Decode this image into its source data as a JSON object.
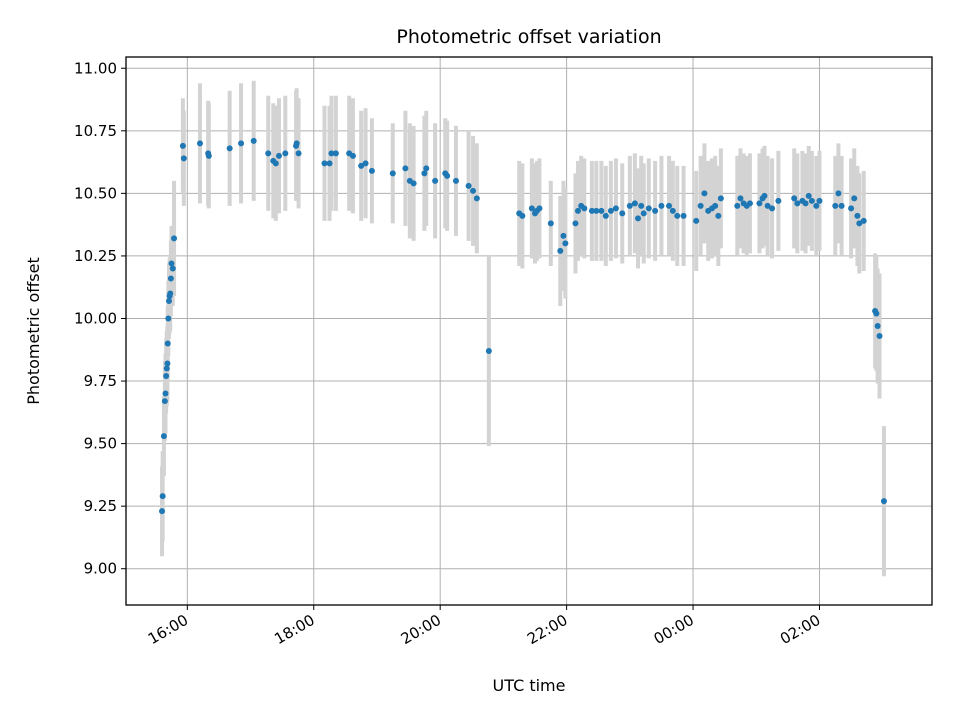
{
  "chart_data": {
    "type": "scatter",
    "title": "Photometric offset variation",
    "xlabel": "UTC time",
    "ylabel": "Photometric offset",
    "x_unit": "hours",
    "xlim": [
      15.03,
      27.78
    ],
    "ylim": [
      8.855,
      11.045
    ],
    "x_ticks": [
      {
        "value": 16,
        "label": "16:00"
      },
      {
        "value": 18,
        "label": "18:00"
      },
      {
        "value": 20,
        "label": "20:00"
      },
      {
        "value": 22,
        "label": "22:00"
      },
      {
        "value": 24,
        "label": "00:00"
      },
      {
        "value": 26,
        "label": "02:00"
      }
    ],
    "y_ticks": [
      {
        "value": 9.0,
        "label": "9.00"
      },
      {
        "value": 9.25,
        "label": "9.25"
      },
      {
        "value": 9.5,
        "label": "9.50"
      },
      {
        "value": 9.75,
        "label": "9.75"
      },
      {
        "value": 10.0,
        "label": "10.00"
      },
      {
        "value": 10.25,
        "label": "10.25"
      },
      {
        "value": 10.5,
        "label": "10.50"
      },
      {
        "value": 10.75,
        "label": "10.75"
      },
      {
        "value": 11.0,
        "label": "11.00"
      }
    ],
    "grid": true,
    "marker_color": "#1f77b4",
    "errorbar_color": "#d3d3d3",
    "points": [
      [
        15.6,
        9.23,
        0.18
      ],
      [
        15.61,
        9.29,
        0.18
      ],
      [
        15.63,
        9.53,
        0.16
      ],
      [
        15.645,
        9.67,
        0.16
      ],
      [
        15.655,
        9.7,
        0.16
      ],
      [
        15.665,
        9.77,
        0.15
      ],
      [
        15.675,
        9.8,
        0.15
      ],
      [
        15.685,
        9.82,
        0.15
      ],
      [
        15.69,
        9.9,
        0.15
      ],
      [
        15.7,
        10.0,
        0.15
      ],
      [
        15.71,
        10.07,
        0.15
      ],
      [
        15.72,
        10.09,
        0.15
      ],
      [
        15.73,
        10.1,
        0.15
      ],
      [
        15.74,
        10.16,
        0.15
      ],
      [
        15.75,
        10.22,
        0.15
      ],
      [
        15.77,
        10.2,
        0.15
      ],
      [
        15.79,
        10.32,
        0.23
      ],
      [
        15.93,
        10.69,
        0.19
      ],
      [
        15.945,
        10.64,
        0.19
      ],
      [
        16.2,
        10.7,
        0.24
      ],
      [
        16.33,
        10.66,
        0.21
      ],
      [
        16.34,
        10.65,
        0.21
      ],
      [
        16.67,
        10.68,
        0.23
      ],
      [
        16.85,
        10.7,
        0.24
      ],
      [
        17.05,
        10.71,
        0.24
      ],
      [
        17.28,
        10.66,
        0.23
      ],
      [
        17.36,
        10.63,
        0.23
      ],
      [
        17.4,
        10.62,
        0.23
      ],
      [
        17.45,
        10.65,
        0.23
      ],
      [
        17.55,
        10.66,
        0.23
      ],
      [
        17.72,
        10.69,
        0.22
      ],
      [
        17.73,
        10.7,
        0.22
      ],
      [
        17.76,
        10.66,
        0.22
      ],
      [
        18.17,
        10.62,
        0.23
      ],
      [
        18.25,
        10.62,
        0.23
      ],
      [
        18.28,
        10.66,
        0.23
      ],
      [
        18.35,
        10.66,
        0.23
      ],
      [
        18.56,
        10.66,
        0.23
      ],
      [
        18.62,
        10.65,
        0.23
      ],
      [
        18.75,
        10.61,
        0.22
      ],
      [
        18.82,
        10.62,
        0.22
      ],
      [
        18.92,
        10.59,
        0.21
      ],
      [
        19.25,
        10.58,
        0.2
      ],
      [
        19.45,
        10.6,
        0.23
      ],
      [
        19.52,
        10.55,
        0.23
      ],
      [
        19.58,
        10.54,
        0.23
      ],
      [
        19.75,
        10.58,
        0.23
      ],
      [
        19.78,
        10.6,
        0.23
      ],
      [
        19.92,
        10.55,
        0.23
      ],
      [
        20.08,
        10.58,
        0.22
      ],
      [
        20.11,
        10.57,
        0.22
      ],
      [
        20.25,
        10.55,
        0.22
      ],
      [
        20.45,
        10.53,
        0.22
      ],
      [
        20.52,
        10.51,
        0.22
      ],
      [
        20.58,
        10.48,
        0.22
      ],
      [
        20.77,
        9.87,
        0.38
      ],
      [
        21.25,
        10.42,
        0.21
      ],
      [
        21.3,
        10.41,
        0.21
      ],
      [
        21.45,
        10.44,
        0.2
      ],
      [
        21.5,
        10.42,
        0.2
      ],
      [
        21.53,
        10.43,
        0.2
      ],
      [
        21.57,
        10.44,
        0.2
      ],
      [
        21.75,
        10.38,
        0.17
      ],
      [
        21.9,
        10.27,
        0.22
      ],
      [
        21.95,
        10.33,
        0.22
      ],
      [
        21.98,
        10.3,
        0.22
      ],
      [
        22.14,
        10.38,
        0.2
      ],
      [
        22.18,
        10.43,
        0.2
      ],
      [
        22.23,
        10.45,
        0.2
      ],
      [
        22.28,
        10.44,
        0.2
      ],
      [
        22.4,
        10.43,
        0.2
      ],
      [
        22.47,
        10.43,
        0.2
      ],
      [
        22.55,
        10.43,
        0.2
      ],
      [
        22.62,
        10.41,
        0.2
      ],
      [
        22.7,
        10.43,
        0.2
      ],
      [
        22.78,
        10.44,
        0.2
      ],
      [
        22.88,
        10.42,
        0.2
      ],
      [
        23.0,
        10.45,
        0.2
      ],
      [
        23.08,
        10.46,
        0.2
      ],
      [
        23.13,
        10.4,
        0.2
      ],
      [
        23.18,
        10.45,
        0.2
      ],
      [
        23.22,
        10.42,
        0.2
      ],
      [
        23.3,
        10.44,
        0.2
      ],
      [
        23.4,
        10.43,
        0.2
      ],
      [
        23.5,
        10.45,
        0.2
      ],
      [
        23.62,
        10.45,
        0.2
      ],
      [
        23.68,
        10.43,
        0.2
      ],
      [
        23.75,
        10.41,
        0.2
      ],
      [
        23.85,
        10.41,
        0.2
      ],
      [
        24.05,
        10.39,
        0.2
      ],
      [
        24.12,
        10.45,
        0.2
      ],
      [
        24.18,
        10.5,
        0.2
      ],
      [
        24.24,
        10.43,
        0.2
      ],
      [
        24.3,
        10.44,
        0.2
      ],
      [
        24.35,
        10.45,
        0.2
      ],
      [
        24.4,
        10.41,
        0.2
      ],
      [
        24.44,
        10.48,
        0.2
      ],
      [
        24.7,
        10.45,
        0.2
      ],
      [
        24.75,
        10.48,
        0.2
      ],
      [
        24.8,
        10.46,
        0.2
      ],
      [
        24.85,
        10.45,
        0.2
      ],
      [
        24.9,
        10.46,
        0.2
      ],
      [
        25.05,
        10.46,
        0.2
      ],
      [
        25.1,
        10.48,
        0.2
      ],
      [
        25.13,
        10.49,
        0.2
      ],
      [
        25.18,
        10.45,
        0.2
      ],
      [
        25.25,
        10.44,
        0.2
      ],
      [
        25.35,
        10.47,
        0.2
      ],
      [
        25.6,
        10.48,
        0.2
      ],
      [
        25.65,
        10.46,
        0.2
      ],
      [
        25.73,
        10.47,
        0.2
      ],
      [
        25.78,
        10.46,
        0.2
      ],
      [
        25.83,
        10.49,
        0.2
      ],
      [
        25.88,
        10.47,
        0.2
      ],
      [
        25.95,
        10.45,
        0.2
      ],
      [
        26.0,
        10.47,
        0.2
      ],
      [
        26.25,
        10.45,
        0.2
      ],
      [
        26.3,
        10.5,
        0.2
      ],
      [
        26.35,
        10.45,
        0.2
      ],
      [
        26.5,
        10.44,
        0.2
      ],
      [
        26.55,
        10.48,
        0.2
      ],
      [
        26.6,
        10.41,
        0.2
      ],
      [
        26.63,
        10.38,
        0.2
      ],
      [
        26.7,
        10.39,
        0.2
      ],
      [
        26.88,
        10.03,
        0.23
      ],
      [
        26.9,
        10.02,
        0.23
      ],
      [
        26.92,
        9.97,
        0.23
      ],
      [
        26.95,
        9.93,
        0.25
      ],
      [
        27.02,
        9.27,
        0.3
      ]
    ]
  }
}
